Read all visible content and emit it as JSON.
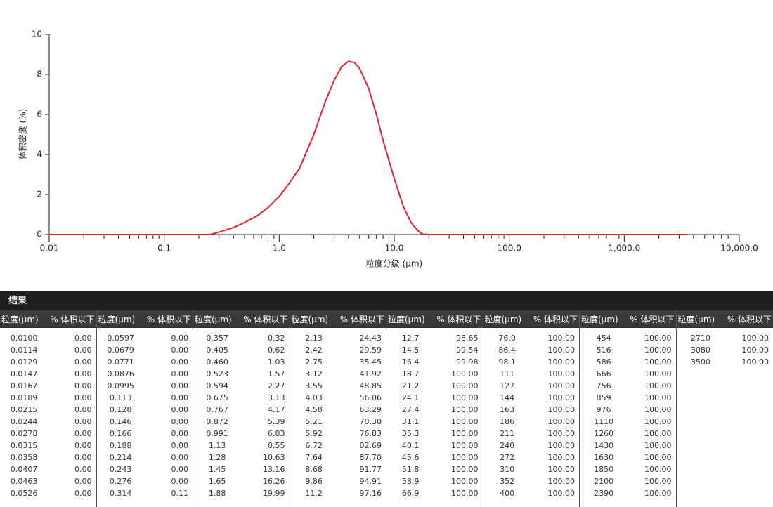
{
  "chart_data": {
    "type": "line",
    "x_label": "粒度分级 (μm)",
    "y_label": "体积密度 (%)",
    "log_x": true,
    "color": "#e8202a",
    "x": [
      0.01,
      0.1,
      0.25,
      0.3,
      0.4,
      0.5,
      0.65,
      0.8,
      1.0,
      1.2,
      1.5,
      2.0,
      2.5,
      3.0,
      3.5,
      4.0,
      4.5,
      5.0,
      6.0,
      7.0,
      8.0,
      10.0,
      12.0,
      14.0,
      16.0,
      17.5,
      20.0,
      100.0,
      1000.0,
      3500.0
    ],
    "values": [
      0,
      0,
      0,
      0.12,
      0.35,
      0.6,
      0.95,
      1.35,
      1.9,
      2.5,
      3.3,
      5.0,
      6.6,
      7.7,
      8.4,
      8.65,
      8.6,
      8.3,
      7.3,
      6.0,
      4.7,
      2.8,
      1.4,
      0.6,
      0.2,
      0.02,
      0,
      0,
      0,
      0
    ],
    "xlim": [
      0.01,
      10000
    ],
    "ylim": [
      0,
      10
    ],
    "xticks": [
      0.01,
      0.1,
      {
        "value": 1,
        "label": "1.0"
      },
      {
        "value": 10,
        "label": "10.0"
      },
      {
        "value": 100,
        "label": "100.0"
      },
      {
        "value": 1000,
        "label": "1,000.0"
      },
      {
        "value": 10000,
        "label": "10,000.0"
      }
    ],
    "yticks": [
      0,
      2,
      4,
      6,
      8,
      10
    ]
  },
  "table": {
    "title": "结果",
    "groups": [
      {
        "header": [
          "粒度(μm)",
          "% 体积以下"
        ],
        "rows": [
          [
            "0.0100",
            "0.00"
          ],
          [
            "0.0114",
            "0.00"
          ],
          [
            "0.0129",
            "0.00"
          ],
          [
            "0.0147",
            "0.00"
          ],
          [
            "0.0167",
            "0.00"
          ],
          [
            "0.0189",
            "0.00"
          ],
          [
            "0.0215",
            "0.00"
          ],
          [
            "0.0244",
            "0.00"
          ],
          [
            "0.0278",
            "0.00"
          ],
          [
            "0.0315",
            "0.00"
          ],
          [
            "0.0358",
            "0.00"
          ],
          [
            "0.0407",
            "0.00"
          ],
          [
            "0.0463",
            "0.00"
          ],
          [
            "0.0526",
            "0.00"
          ]
        ]
      },
      {
        "header": [
          "粒度(μm)",
          "% 体积以下"
        ],
        "rows": [
          [
            "0.0597",
            "0.00"
          ],
          [
            "0.0679",
            "0.00"
          ],
          [
            "0.0771",
            "0.00"
          ],
          [
            "0.0876",
            "0.00"
          ],
          [
            "0.0995",
            "0.00"
          ],
          [
            "0.113",
            "0.00"
          ],
          [
            "0.128",
            "0.00"
          ],
          [
            "0.146",
            "0.00"
          ],
          [
            "0.166",
            "0.00"
          ],
          [
            "0.188",
            "0.00"
          ],
          [
            "0.214",
            "0.00"
          ],
          [
            "0.243",
            "0.00"
          ],
          [
            "0.276",
            "0.00"
          ],
          [
            "0.314",
            "0.11"
          ]
        ]
      },
      {
        "header": [
          "粒度(μm)",
          "% 体积以下"
        ],
        "rows": [
          [
            "0.357",
            "0.32"
          ],
          [
            "0.405",
            "0.62"
          ],
          [
            "0.460",
            "1.03"
          ],
          [
            "0.523",
            "1.57"
          ],
          [
            "0.594",
            "2.27"
          ],
          [
            "0.675",
            "3.13"
          ],
          [
            "0.767",
            "4.17"
          ],
          [
            "0.872",
            "5.39"
          ],
          [
            "0.991",
            "6.83"
          ],
          [
            "1.13",
            "8.55"
          ],
          [
            "1.28",
            "10.63"
          ],
          [
            "1.45",
            "13.16"
          ],
          [
            "1.65",
            "16.26"
          ],
          [
            "1.88",
            "19.99"
          ]
        ]
      },
      {
        "header": [
          "粒度(μm)",
          "% 体积以下"
        ],
        "rows": [
          [
            "2.13",
            "24.43"
          ],
          [
            "2.42",
            "29.59"
          ],
          [
            "2.75",
            "35.45"
          ],
          [
            "3.12",
            "41.92"
          ],
          [
            "3.55",
            "48.85"
          ],
          [
            "4.03",
            "56.06"
          ],
          [
            "4.58",
            "63.29"
          ],
          [
            "5.21",
            "70.30"
          ],
          [
            "5.92",
            "76.83"
          ],
          [
            "6.72",
            "82.69"
          ],
          [
            "7.64",
            "87.70"
          ],
          [
            "8.68",
            "91.77"
          ],
          [
            "9.86",
            "94.91"
          ],
          [
            "11.2",
            "97.16"
          ]
        ]
      },
      {
        "header": [
          "粒度(μm)",
          "% 体积以下"
        ],
        "rows": [
          [
            "12.7",
            "98.65"
          ],
          [
            "14.5",
            "99.54"
          ],
          [
            "16.4",
            "99.98"
          ],
          [
            "18.7",
            "100.00"
          ],
          [
            "21.2",
            "100.00"
          ],
          [
            "24.1",
            "100.00"
          ],
          [
            "27.4",
            "100.00"
          ],
          [
            "31.1",
            "100.00"
          ],
          [
            "35.3",
            "100.00"
          ],
          [
            "40.1",
            "100.00"
          ],
          [
            "45.6",
            "100.00"
          ],
          [
            "51.8",
            "100.00"
          ],
          [
            "58.9",
            "100.00"
          ],
          [
            "66.9",
            "100.00"
          ]
        ]
      },
      {
        "header": [
          "粒度(μm)",
          "% 体积以下"
        ],
        "rows": [
          [
            "76.0",
            "100.00"
          ],
          [
            "86.4",
            "100.00"
          ],
          [
            "98.1",
            "100.00"
          ],
          [
            "111",
            "100.00"
          ],
          [
            "127",
            "100.00"
          ],
          [
            "144",
            "100.00"
          ],
          [
            "163",
            "100.00"
          ],
          [
            "186",
            "100.00"
          ],
          [
            "211",
            "100.00"
          ],
          [
            "240",
            "100.00"
          ],
          [
            "272",
            "100.00"
          ],
          [
            "310",
            "100.00"
          ],
          [
            "352",
            "100.00"
          ],
          [
            "400",
            "100.00"
          ]
        ]
      },
      {
        "header": [
          "粒度(μm)",
          "% 体积以下"
        ],
        "rows": [
          [
            "454",
            "100.00"
          ],
          [
            "516",
            "100.00"
          ],
          [
            "586",
            "100.00"
          ],
          [
            "666",
            "100.00"
          ],
          [
            "756",
            "100.00"
          ],
          [
            "859",
            "100.00"
          ],
          [
            "976",
            "100.00"
          ],
          [
            "1110",
            "100.00"
          ],
          [
            "1260",
            "100.00"
          ],
          [
            "1430",
            "100.00"
          ],
          [
            "1630",
            "100.00"
          ],
          [
            "1850",
            "100.00"
          ],
          [
            "2100",
            "100.00"
          ],
          [
            "2390",
            "100.00"
          ]
        ]
      },
      {
        "header": [
          "粒度(μm)",
          "% 体积以下"
        ],
        "rows": [
          [
            "2710",
            "100.00"
          ],
          [
            "3080",
            "100.00"
          ],
          [
            "3500",
            "100.00"
          ]
        ]
      }
    ]
  }
}
